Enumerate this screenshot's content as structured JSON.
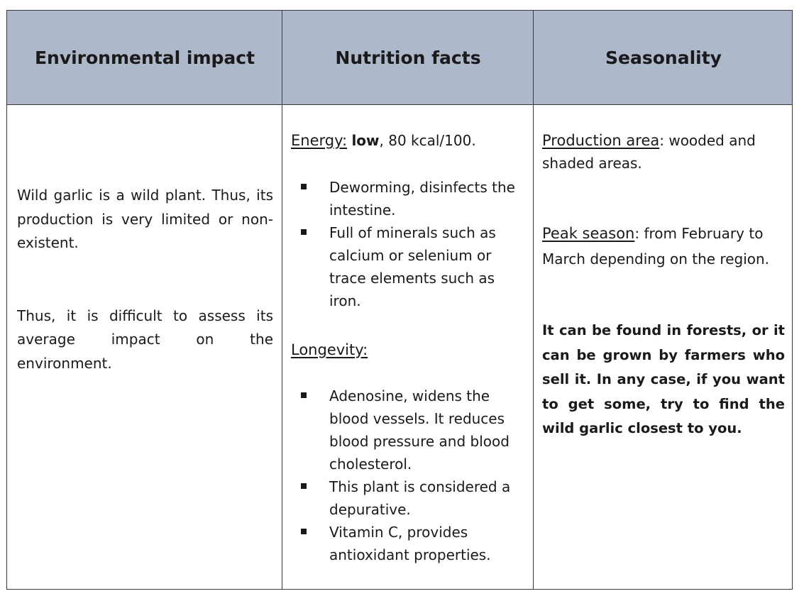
{
  "headers": {
    "environmental": "Environmental impact",
    "nutrition": "Nutrition facts",
    "seasonality": "Seasonality"
  },
  "environmental": {
    "para1": "Wild garlic is a wild plant. Thus, its production is very limited or non-existent.",
    "para2_line1": "Thus, it is difficult to assess its average impact on the",
    "para2_line2": "environment."
  },
  "nutrition": {
    "energy_label": "Energy:",
    "energy_bold": "low",
    "energy_rest": ", 80 kcal/100.",
    "energy_items": [
      "Deworming, disinfects the intestine.",
      "Full of minerals such as calcium or selenium or trace elements such as iron."
    ],
    "longevity_label": "Longevity:",
    "longevity_items": [
      "Adenosine, widens the blood vessels. It reduces blood pressure and blood cholesterol.",
      "This plant is considered a depurative.",
      "Vitamin C, provides antioxidant properties."
    ]
  },
  "seasonality": {
    "production_label": "Production area",
    "production_rest": ": wooded and shaded areas.",
    "peak_label": "Peak season",
    "peak_rest": ": from February to March depending on the region.",
    "note": "It can be found in forests, or it can be grown by farmers who sell it. In any case, if you want to get some, try to find the wild garlic closest to you."
  }
}
